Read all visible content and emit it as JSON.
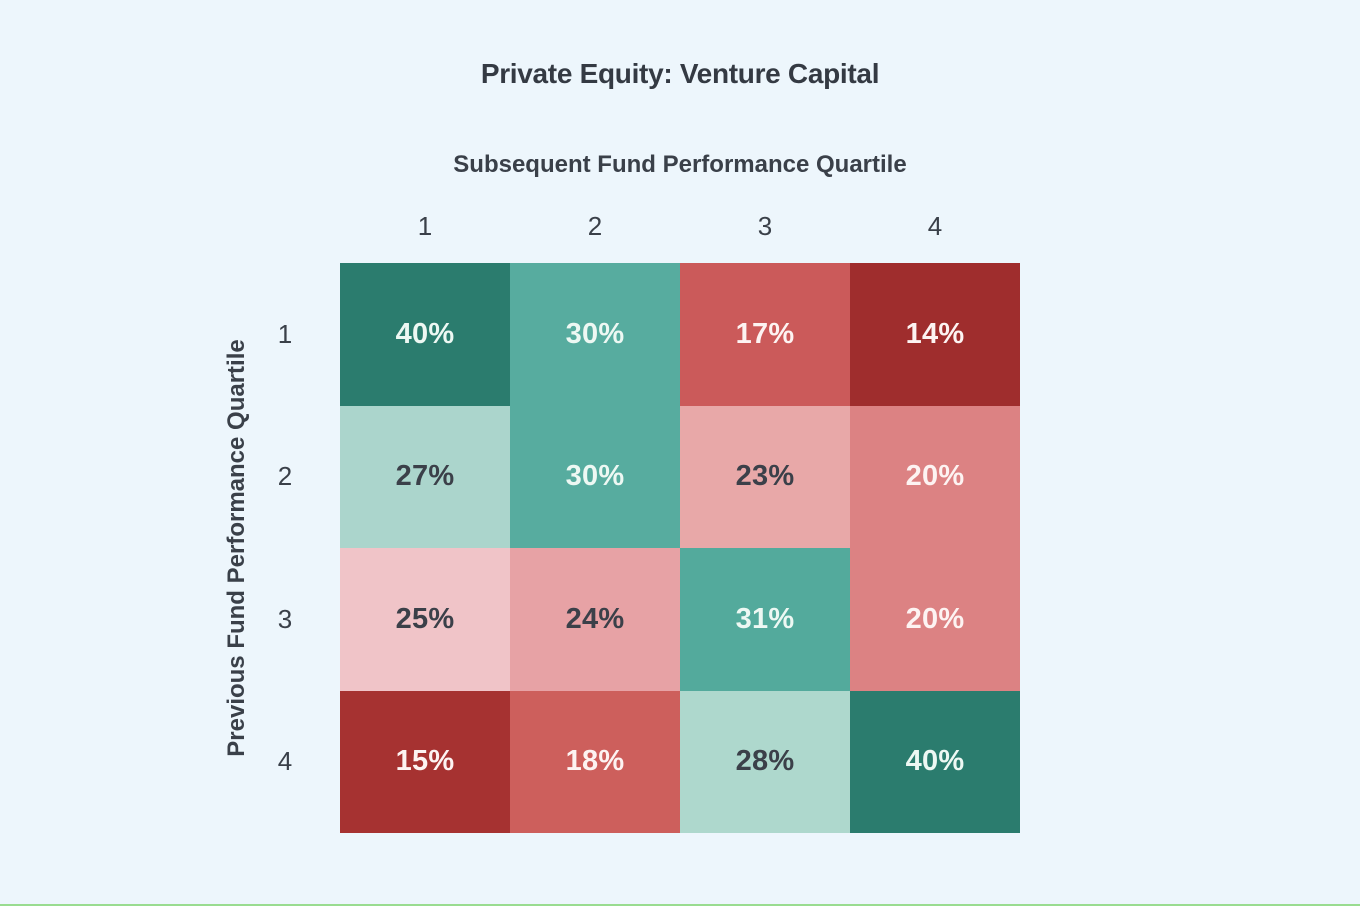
{
  "page": {
    "background": "#edf6fc",
    "bottom_rule_color": "#99dc90"
  },
  "chart_data": {
    "type": "heatmap",
    "title": "Private Equity: Venture Capital",
    "xlabel": "Subsequent Fund Performance Quartile",
    "ylabel": "Previous Fund Performance Quartile",
    "x_categories": [
      "1",
      "2",
      "3",
      "4"
    ],
    "y_categories": [
      "1",
      "2",
      "3",
      "4"
    ],
    "values_percent": [
      [
        40,
        30,
        17,
        14
      ],
      [
        27,
        30,
        23,
        20
      ],
      [
        25,
        24,
        31,
        20
      ],
      [
        15,
        18,
        28,
        40
      ]
    ],
    "legend": "none",
    "grid_lines": "off",
    "color_semantics": {
      "high_green": "#2b7c6e",
      "mid_green": "#57ac9f",
      "light_green": "#abd5cc",
      "light_pink": "#f0c4c8",
      "mid_red": "#cb5a5a",
      "dark_red": "#9f2d2d"
    },
    "cells": [
      {
        "row": 1,
        "col": 1,
        "label": "40%",
        "value": 40,
        "color": "#2b7c6e",
        "text_color": "#edf8f3"
      },
      {
        "row": 1,
        "col": 2,
        "label": "30%",
        "value": 30,
        "color": "#57ac9f",
        "text_color": "#edf8f3"
      },
      {
        "row": 1,
        "col": 3,
        "label": "17%",
        "value": 17,
        "color": "#cb5a5a",
        "text_color": "#fdf3f2"
      },
      {
        "row": 1,
        "col": 4,
        "label": "14%",
        "value": 14,
        "color": "#9f2d2d",
        "text_color": "#fdf3f2"
      },
      {
        "row": 2,
        "col": 1,
        "label": "27%",
        "value": 27,
        "color": "#abd5cc",
        "text_color": "#3b4049"
      },
      {
        "row": 2,
        "col": 2,
        "label": "30%",
        "value": 30,
        "color": "#57ac9f",
        "text_color": "#edf8f3"
      },
      {
        "row": 2,
        "col": 3,
        "label": "23%",
        "value": 23,
        "color": "#e8a8a8",
        "text_color": "#3b4049"
      },
      {
        "row": 2,
        "col": 4,
        "label": "20%",
        "value": 20,
        "color": "#dc8283",
        "text_color": "#fdf3f2"
      },
      {
        "row": 3,
        "col": 1,
        "label": "25%",
        "value": 25,
        "color": "#f0c4c8",
        "text_color": "#3b4049"
      },
      {
        "row": 3,
        "col": 2,
        "label": "24%",
        "value": 24,
        "color": "#e7a2a5",
        "text_color": "#3b4049"
      },
      {
        "row": 3,
        "col": 3,
        "label": "31%",
        "value": 31,
        "color": "#53aa9c",
        "text_color": "#edf8f3"
      },
      {
        "row": 3,
        "col": 4,
        "label": "20%",
        "value": 20,
        "color": "#dc8283",
        "text_color": "#fdf3f2"
      },
      {
        "row": 4,
        "col": 1,
        "label": "15%",
        "value": 15,
        "color": "#a63231",
        "text_color": "#fdf3f2"
      },
      {
        "row": 4,
        "col": 2,
        "label": "18%",
        "value": 18,
        "color": "#cd5f5c",
        "text_color": "#fdf3f2"
      },
      {
        "row": 4,
        "col": 3,
        "label": "28%",
        "value": 28,
        "color": "#aed8cd",
        "text_color": "#3b4049"
      },
      {
        "row": 4,
        "col": 4,
        "label": "40%",
        "value": 40,
        "color": "#2b7c6e",
        "text_color": "#edf8f3"
      }
    ]
  }
}
